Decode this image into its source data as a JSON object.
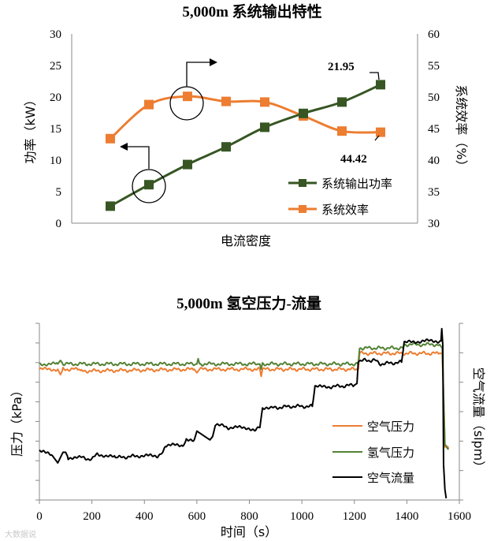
{
  "watermark": "大数据说",
  "chart_data": [
    {
      "type": "line",
      "title": "5,000m 系统输出特性",
      "xlabel": "电流密度",
      "ylabel": "功率（kW）",
      "ylabel_right": "系统效率（%）",
      "ylim": [
        0,
        30
      ],
      "ylim_right": [
        30,
        60
      ],
      "yticks": [
        0,
        5,
        10,
        15,
        20,
        25,
        30
      ],
      "yticks_right": [
        30,
        35,
        40,
        45,
        50,
        55,
        60
      ],
      "x_points": 8,
      "series": [
        {
          "name": "系统输出功率",
          "axis": "left",
          "color": "#375623",
          "marker": "square",
          "values": [
            2.7,
            6.1,
            9.3,
            12.1,
            15.2,
            17.4,
            19.2,
            21.95
          ]
        },
        {
          "name": "系统效率",
          "axis": "right",
          "color": "#ED7D31",
          "marker": "square",
          "values": [
            43.4,
            48.8,
            50.1,
            49.3,
            49.2,
            47.0,
            44.6,
            44.42
          ]
        }
      ],
      "annotations": [
        {
          "text": "21.95",
          "series": "系统输出功率",
          "index": 7
        },
        {
          "text": "44.42",
          "series": "系统效率",
          "index": 7
        }
      ],
      "grid": false,
      "legend": "bottom-right"
    },
    {
      "type": "line",
      "title": "5,000m 氢空压力-流量",
      "xlabel": "时间（s）",
      "ylabel": "压力（kPa）",
      "ylabel_right": "空气流量（slpm）",
      "xlim": [
        0,
        1600
      ],
      "xticks": [
        0,
        200,
        400,
        600,
        800,
        1000,
        1200,
        1400,
        1600
      ],
      "left_scale": [
        0,
        100
      ],
      "right_scale": [
        0,
        100
      ],
      "series": [
        {
          "name": "空气压力",
          "axis": "left",
          "color": "#ED7D31",
          "points": [
            [
              0,
              74
            ],
            [
              70,
              74
            ],
            [
              80,
              71
            ],
            [
              90,
              74
            ],
            [
              150,
              74
            ],
            [
              160,
              73
            ],
            [
              590,
              74
            ],
            [
              600,
              72
            ],
            [
              610,
              74
            ],
            [
              840,
              74
            ],
            [
              845,
              70
            ],
            [
              850,
              74
            ],
            [
              1215,
              74
            ],
            [
              1220,
              83
            ],
            [
              1525,
              83
            ],
            [
              1535,
              83
            ],
            [
              1545,
              30
            ],
            [
              1560,
              30
            ]
          ]
        },
        {
          "name": "氢气压力",
          "axis": "left",
          "color": "#548235",
          "points": [
            [
              0,
              77
            ],
            [
              70,
              77
            ],
            [
              80,
              79
            ],
            [
              90,
              77
            ],
            [
              600,
              77
            ],
            [
              605,
              80
            ],
            [
              610,
              77
            ],
            [
              840,
              77
            ],
            [
              845,
              74
            ],
            [
              850,
              77
            ],
            [
              1215,
              77
            ],
            [
              1220,
              86
            ],
            [
              1385,
              86
            ],
            [
              1390,
              88
            ],
            [
              1525,
              88
            ],
            [
              1535,
              86
            ],
            [
              1545,
              31
            ],
            [
              1560,
              29
            ]
          ]
        },
        {
          "name": "空气流量",
          "axis": "right",
          "color": "#000000",
          "points": [
            [
              0,
              28
            ],
            [
              50,
              25
            ],
            [
              70,
              21
            ],
            [
              90,
              27
            ],
            [
              100,
              27
            ],
            [
              110,
              24
            ],
            [
              160,
              24
            ],
            [
              200,
              23
            ],
            [
              220,
              26
            ],
            [
              290,
              24
            ],
            [
              300,
              24
            ],
            [
              380,
              25
            ],
            [
              450,
              25
            ],
            [
              470,
              27
            ],
            [
              480,
              31
            ],
            [
              550,
              31
            ],
            [
              560,
              34
            ],
            [
              590,
              34
            ],
            [
              600,
              39
            ],
            [
              650,
              34
            ],
            [
              660,
              36
            ],
            [
              670,
              42
            ],
            [
              700,
              42
            ],
            [
              720,
              41
            ],
            [
              790,
              41
            ],
            [
              820,
              40
            ],
            [
              840,
              41
            ],
            [
              850,
              52
            ],
            [
              880,
              52
            ],
            [
              960,
              53
            ],
            [
              1040,
              53
            ],
            [
              1050,
              64
            ],
            [
              1100,
              64
            ],
            [
              1200,
              65
            ],
            [
              1210,
              66
            ],
            [
              1215,
              79
            ],
            [
              1280,
              79
            ],
            [
              1300,
              77
            ],
            [
              1380,
              78
            ],
            [
              1390,
              89
            ],
            [
              1460,
              90
            ],
            [
              1530,
              90
            ],
            [
              1533,
              97
            ],
            [
              1537,
              88
            ],
            [
              1540,
              20
            ],
            [
              1545,
              6
            ],
            [
              1550,
              1
            ]
          ]
        }
      ],
      "grid": false,
      "legend": "right"
    }
  ]
}
